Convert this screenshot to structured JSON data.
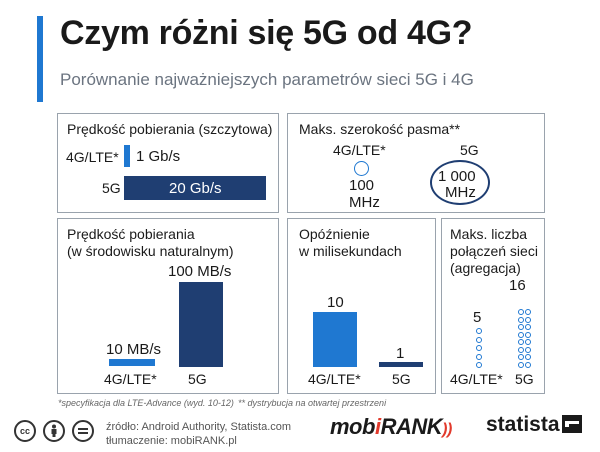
{
  "title": "Czym różni się 5G od 4G?",
  "subtitle": "Porównanie najważniejszych parametrów sieci 5G i 4G",
  "colors": {
    "accent": "#1f78d1",
    "navy": "#1f3e72",
    "light_blue": "#1f78d1",
    "panel_border": "#9aa3ad"
  },
  "chart_data": [
    {
      "type": "bar",
      "title": "Prędkość pobierania (szczytowa)",
      "categories": [
        "4G/LTE*",
        "5G"
      ],
      "values": [
        1,
        20
      ],
      "unit": "Gb/s",
      "value_labels": [
        "1 Gb/s",
        "20 Gb/s"
      ],
      "orientation": "horizontal"
    },
    {
      "type": "bubble",
      "title": "Maks. szerokość pasma**",
      "categories": [
        "4G/LTE*",
        "5G"
      ],
      "values": [
        100,
        1000
      ],
      "unit": "MHz",
      "value_labels": [
        "100 MHz",
        "1 000 MHz"
      ]
    },
    {
      "type": "bar",
      "title": "Prędkość pobierania (w środowisku naturalnym)",
      "categories": [
        "4G/LTE*",
        "5G"
      ],
      "values": [
        10,
        100
      ],
      "unit": "MB/s",
      "value_labels": [
        "10 MB/s",
        "100 MB/s"
      ]
    },
    {
      "type": "bar",
      "title": "Opóźnienie w milisekundach",
      "categories": [
        "4G/LTE*",
        "5G"
      ],
      "values": [
        10,
        1
      ],
      "value_labels": [
        "10",
        "1"
      ]
    },
    {
      "type": "dot",
      "title": "Maks. liczba połączeń sieci (agregacja)",
      "categories": [
        "4G/LTE*",
        "5G"
      ],
      "values": [
        5,
        16
      ],
      "value_labels": [
        "5",
        "16"
      ]
    }
  ],
  "panels": {
    "peak": {
      "title": "Prędkość pobierania (szczytowa)",
      "cat1": "4G/LTE*",
      "cat2": "5G",
      "val1": "1 Gb/s",
      "val2": "20 Gb/s"
    },
    "bandwidth": {
      "title": "Maks. szerokość pasma**",
      "cat1": "4G/LTE*",
      "cat2": "5G",
      "val1a": "100",
      "val1b": "MHz",
      "val2a": "1 000",
      "val2b": "MHz"
    },
    "natural": {
      "title_l1": "Prędkość pobierania",
      "title_l2": "(w środowisku naturalnym)",
      "cat1": "4G/LTE*",
      "cat2": "5G",
      "val1": "10 MB/s",
      "val2": "100 MB/s"
    },
    "latency": {
      "title_l1": "Opóźnienie",
      "title_l2": "w milisekundach",
      "cat1": "4G/LTE*",
      "cat2": "5G",
      "val1": "10",
      "val2": "1"
    },
    "connections": {
      "title_l1": "Maks. liczba",
      "title_l2": "połączeń sieci",
      "title_l3": "(agregacja)",
      "cat1": "4G/LTE*",
      "cat2": "5G",
      "val1": "5",
      "val2": "16"
    }
  },
  "footnote1": "*specyfikacja dla LTE-Advance (wyd. 10-12)",
  "footnote2": "** dystrybucja na otwartej przestrzeni",
  "source_line1": "źródło: Android Authority, Statista.com",
  "source_line2": "tłumaczenie: mobiRANK.pl",
  "license_icons": [
    "cc-icon",
    "by-icon",
    "nd-icon"
  ],
  "logos": {
    "mobi_a": "mob",
    "mobi_b": "i",
    "mobi_c": "RANK",
    "statista": "statista"
  }
}
